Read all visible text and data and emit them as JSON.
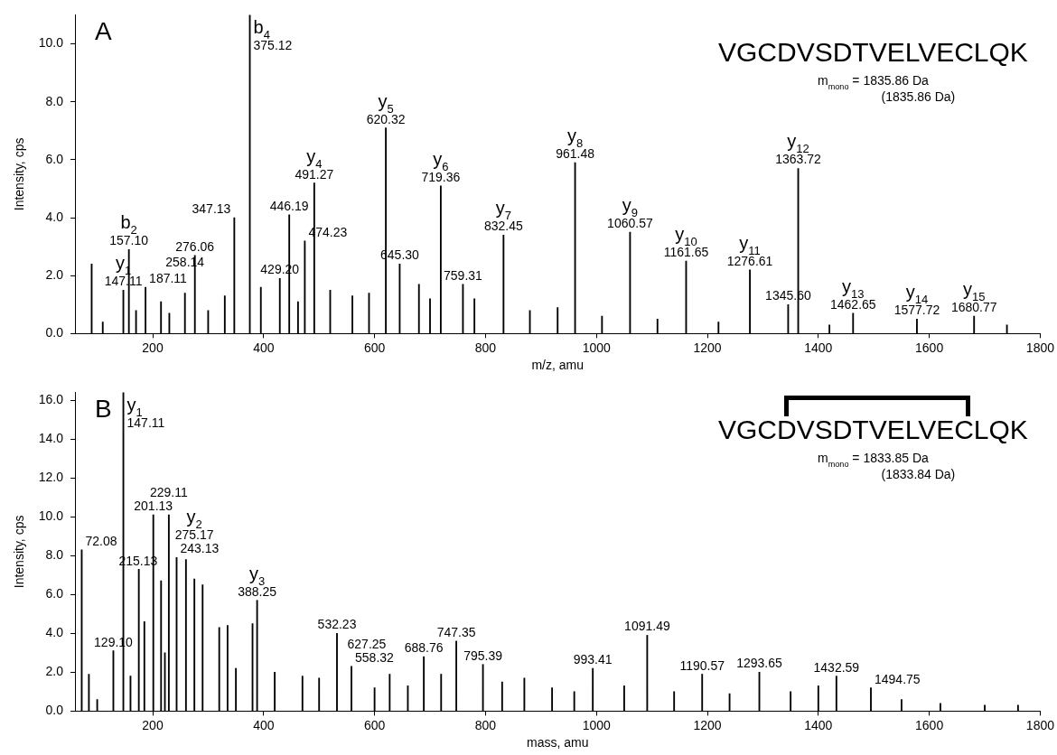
{
  "chart_data": [
    {
      "type": "bar",
      "title": "A",
      "xlabel": "m/z, amu",
      "ylabel": "Intensity, cps",
      "color": "#000000",
      "xlim": [
        60,
        1800
      ],
      "xticks": [
        200,
        400,
        600,
        800,
        1000,
        1200,
        1400,
        1600,
        1800
      ],
      "ylim": [
        0,
        11
      ],
      "yticks": [
        {
          "value": 0,
          "label": "0.0"
        },
        {
          "value": 2,
          "label": "2.0"
        },
        {
          "value": 4,
          "label": "4.0"
        },
        {
          "value": 6,
          "label": "6.0"
        },
        {
          "value": 8,
          "label": "8.0"
        },
        {
          "value": 10,
          "label": "10.0"
        }
      ],
      "x": [
        90,
        110,
        147.11,
        157.1,
        170,
        187.11,
        215,
        230,
        258.14,
        276.06,
        300,
        330,
        347.13,
        375.12,
        395,
        429.2,
        446.19,
        462,
        474.23,
        491.27,
        520,
        560,
        590,
        620.32,
        645.3,
        680,
        700,
        719.36,
        759.31,
        780,
        832.45,
        880,
        930,
        961.48,
        1010,
        1060.57,
        1110,
        1161.65,
        1220,
        1276.61,
        1345.6,
        1363.72,
        1420,
        1462.65,
        1577.72,
        1680.77,
        1740
      ],
      "values": [
        2.4,
        0.4,
        1.5,
        2.9,
        0.8,
        1.6,
        1.1,
        0.7,
        1.4,
        2.7,
        0.8,
        1.3,
        4.0,
        11.0,
        1.6,
        1.9,
        4.1,
        1.1,
        3.2,
        5.2,
        1.5,
        1.3,
        1.4,
        7.1,
        2.4,
        1.7,
        1.2,
        5.1,
        1.7,
        1.2,
        3.4,
        0.8,
        0.9,
        5.9,
        0.6,
        3.5,
        0.5,
        2.5,
        0.4,
        2.2,
        1.0,
        5.7,
        0.3,
        0.7,
        0.5,
        0.6,
        0.3
      ],
      "annotations": [
        "VGCDVSDTVELVECLQK",
        "m$_{mono}$ = 1835.86 Da",
        "(1835.86 Da)",
        {
          "text": "y$_{1}$",
          "x": 147.11,
          "y": 1.5
        },
        {
          "text": "147.11",
          "x": 147.11,
          "y": 1.5
        },
        {
          "text": "b$_{2}$",
          "x": 157.1,
          "y": 2.9
        },
        {
          "text": "157.10",
          "x": 157.1,
          "y": 2.9
        },
        {
          "text": "187.11",
          "x": 187.11,
          "y": 1.6
        },
        {
          "text": "258.14",
          "x": 258.14,
          "y": 1.4
        },
        {
          "text": "276.06",
          "x": 276.06,
          "y": 2.7
        },
        {
          "text": "347.13",
          "x": 347.13,
          "y": 4.0
        },
        {
          "text": "b$_{4}$",
          "x": 375.12,
          "y": 11.0
        },
        {
          "text": "375.12",
          "x": 375.12,
          "y": 11.0
        },
        {
          "text": "429.20",
          "x": 429.2,
          "y": 1.9
        },
        {
          "text": "446.19",
          "x": 446.19,
          "y": 4.1
        },
        {
          "text": "474.23",
          "x": 474.23,
          "y": 3.2
        },
        {
          "text": "y$_{4}$",
          "x": 491.27,
          "y": 5.2
        },
        {
          "text": "491.27",
          "x": 491.27,
          "y": 5.2
        },
        {
          "text": "y$_{5}$",
          "x": 620.32,
          "y": 7.1
        },
        {
          "text": "620.32",
          "x": 620.32,
          "y": 7.1
        },
        {
          "text": "645.30",
          "x": 645.3,
          "y": 2.4
        },
        {
          "text": "y$_{6}$",
          "x": 719.36,
          "y": 5.1
        },
        {
          "text": "719.36",
          "x": 719.36,
          "y": 5.1
        },
        {
          "text": "759.31",
          "x": 759.31,
          "y": 1.7
        },
        {
          "text": "y$_{7}$",
          "x": 832.45,
          "y": 3.4
        },
        {
          "text": "832.45",
          "x": 832.45,
          "y": 3.4
        },
        {
          "text": "y$_{8}$",
          "x": 961.48,
          "y": 5.9
        },
        {
          "text": "961.48",
          "x": 961.48,
          "y": 5.9
        },
        {
          "text": "y$_{9}$",
          "x": 1060.57,
          "y": 3.5
        },
        {
          "text": "1060.57",
          "x": 1060.57,
          "y": 3.5
        },
        {
          "text": "y$_{10}$",
          "x": 1161.65,
          "y": 2.5
        },
        {
          "text": "1161.65",
          "x": 1161.65,
          "y": 2.5
        },
        {
          "text": "y$_{11}$",
          "x": 1276.61,
          "y": 2.2
        },
        {
          "text": "1276.61",
          "x": 1276.61,
          "y": 2.2
        },
        {
          "text": "1345.60",
          "x": 1345.6,
          "y": 1.0
        },
        {
          "text": "y$_{12}$",
          "x": 1363.72,
          "y": 5.7
        },
        {
          "text": "1363.72",
          "x": 1363.72,
          "y": 5.7
        },
        {
          "text": "y$_{13}$",
          "x": 1462.65,
          "y": 0.7
        },
        {
          "text": "1462.65",
          "x": 1462.65,
          "y": 0.7
        },
        {
          "text": "y$_{14}$",
          "x": 1577.72,
          "y": 0.5
        },
        {
          "text": "1577.72",
          "x": 1577.72,
          "y": 0.5
        },
        {
          "text": "y$_{15}$",
          "x": 1680.77,
          "y": 0.6
        },
        {
          "text": "1680.77",
          "x": 1680.77,
          "y": 0.6
        }
      ]
    },
    {
      "type": "bar",
      "title": "B",
      "xlabel": "mass, amu",
      "ylabel": "Intensity, cps",
      "color": "#000000",
      "xlim": [
        60,
        1800
      ],
      "xticks": [
        200,
        400,
        600,
        800,
        1000,
        1200,
        1400,
        1600,
        1800
      ],
      "ylim": [
        0,
        16.4
      ],
      "yticks": [
        {
          "value": 0,
          "label": "0.0"
        },
        {
          "value": 2,
          "label": "2.0"
        },
        {
          "value": 4,
          "label": "4.0"
        },
        {
          "value": 6,
          "label": "6.0"
        },
        {
          "value": 8,
          "label": "8.0"
        },
        {
          "value": 10,
          "label": "10.0"
        },
        {
          "value": 12,
          "label": "12.0"
        },
        {
          "value": 14,
          "label": "14.0"
        },
        {
          "value": 16,
          "label": "16.0"
        }
      ],
      "x": [
        72.08,
        85,
        100,
        129.1,
        147.11,
        160,
        175,
        185,
        201.13,
        215.13,
        222,
        229.11,
        243.13,
        260,
        275.17,
        290,
        320,
        335,
        350,
        380,
        388.25,
        420,
        470,
        500,
        532.23,
        558.32,
        600,
        627.25,
        660,
        688.76,
        720,
        747.35,
        795.39,
        830,
        870,
        920,
        960,
        993.41,
        1050,
        1091.49,
        1140,
        1190.57,
        1240,
        1293.65,
        1350,
        1400,
        1432.59,
        1494.75,
        1550,
        1620,
        1700,
        1760
      ],
      "values": [
        8.3,
        1.9,
        0.6,
        3.1,
        16.4,
        1.8,
        7.3,
        4.6,
        10.1,
        6.7,
        3.0,
        10.1,
        7.9,
        7.8,
        6.8,
        6.5,
        4.3,
        4.4,
        2.2,
        4.5,
        5.7,
        2.0,
        1.8,
        1.7,
        4.0,
        2.3,
        1.2,
        1.9,
        1.3,
        2.8,
        1.9,
        3.6,
        2.4,
        1.5,
        1.7,
        1.2,
        1.0,
        2.2,
        1.3,
        3.9,
        1.0,
        1.9,
        0.9,
        2.0,
        1.0,
        1.3,
        1.8,
        1.2,
        0.6,
        0.4,
        0.3,
        0.3
      ],
      "annotations": [
        "VGCDVSDTVELVECLQK",
        "m$_{mono}$ = 1833.85 Da",
        "(1833.84 Da)",
        {
          "text": "72.08",
          "x": 72.08,
          "y": 8.3
        },
        {
          "text": "129.10",
          "x": 129.1,
          "y": 3.1
        },
        {
          "text": "y$_{1}$",
          "x": 147.11,
          "y": 16.4
        },
        {
          "text": "147.11",
          "x": 147.11,
          "y": 16.4
        },
        {
          "text": "201.13",
          "x": 201.13,
          "y": 10.1
        },
        {
          "text": "215.13",
          "x": 215.13,
          "y": 6.7
        },
        {
          "text": "229.11",
          "x": 229.11,
          "y": 10.1
        },
        {
          "text": "243.13",
          "x": 243.13,
          "y": 7.9
        },
        {
          "text": "y$_{2}$",
          "x": 275.17,
          "y": 6.8
        },
        {
          "text": "275.17",
          "x": 275.17,
          "y": 6.8
        },
        {
          "text": "y$_{3}$",
          "x": 388.25,
          "y": 5.7
        },
        {
          "text": "388.25",
          "x": 388.25,
          "y": 5.7
        },
        {
          "text": "532.23",
          "x": 532.23,
          "y": 4.0
        },
        {
          "text": "558.32",
          "x": 558.32,
          "y": 2.3
        },
        {
          "text": "627.25",
          "x": 627.25,
          "y": 1.9
        },
        {
          "text": "688.76",
          "x": 688.76,
          "y": 2.8
        },
        {
          "text": "747.35",
          "x": 747.35,
          "y": 3.6
        },
        {
          "text": "795.39",
          "x": 795.39,
          "y": 2.4
        },
        {
          "text": "993.41",
          "x": 993.41,
          "y": 2.2
        },
        {
          "text": "1091.49",
          "x": 1091.49,
          "y": 3.9
        },
        {
          "text": "1190.57",
          "x": 1190.57,
          "y": 1.9
        },
        {
          "text": "1293.65",
          "x": 1293.65,
          "y": 2.0
        },
        {
          "text": "1432.59",
          "x": 1432.59,
          "y": 1.8
        },
        {
          "text": "1494.75",
          "x": 1494.75,
          "y": 1.2
        }
      ]
    }
  ]
}
